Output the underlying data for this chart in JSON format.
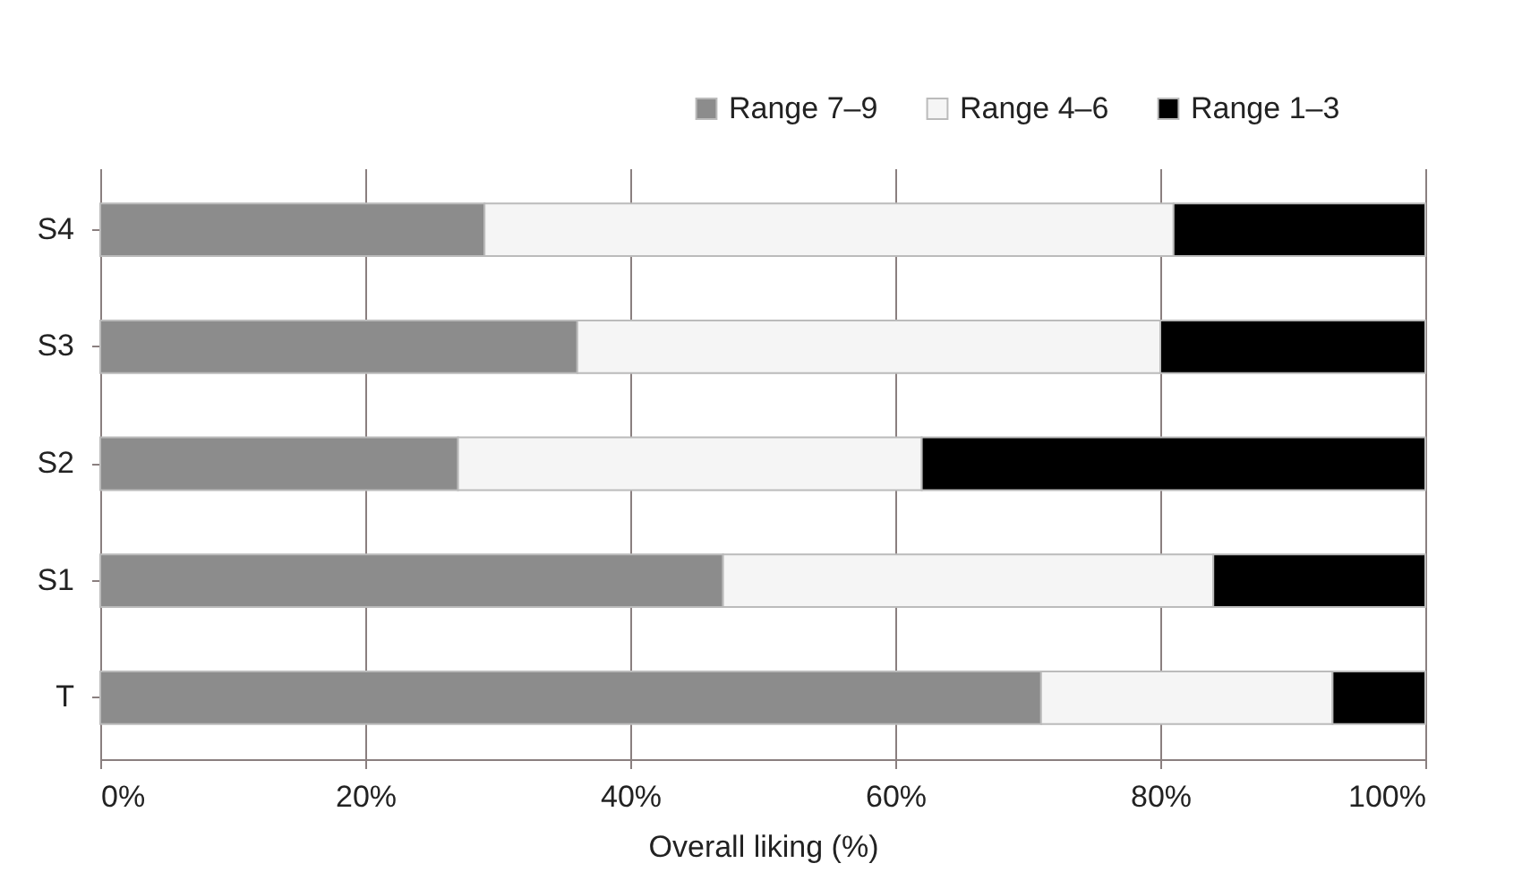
{
  "chart_data": {
    "type": "bar",
    "orientation": "horizontal",
    "stacked": true,
    "categories": [
      "S4",
      "S3",
      "S2",
      "S1",
      "T"
    ],
    "series": [
      {
        "name": "Range 7–9",
        "color": "#8c8c8c",
        "values": [
          29,
          36,
          27,
          47,
          71
        ]
      },
      {
        "name": "Range 4–6",
        "color": "#f5f5f5",
        "values": [
          52,
          44,
          35,
          37,
          22
        ]
      },
      {
        "name": "Range 1–3",
        "color": "#000000",
        "values": [
          19,
          20,
          38,
          16,
          7
        ]
      }
    ],
    "xlabel": "Overall liking (%)",
    "xlim": [
      0,
      100
    ],
    "xticks": [
      {
        "value": 0,
        "label": "0%"
      },
      {
        "value": 20,
        "label": "20%"
      },
      {
        "value": 40,
        "label": "40%"
      },
      {
        "value": 60,
        "label": "60%"
      },
      {
        "value": 80,
        "label": "80%"
      },
      {
        "value": 100,
        "label": "100%"
      }
    ],
    "grid": "x",
    "legend": "top right"
  }
}
